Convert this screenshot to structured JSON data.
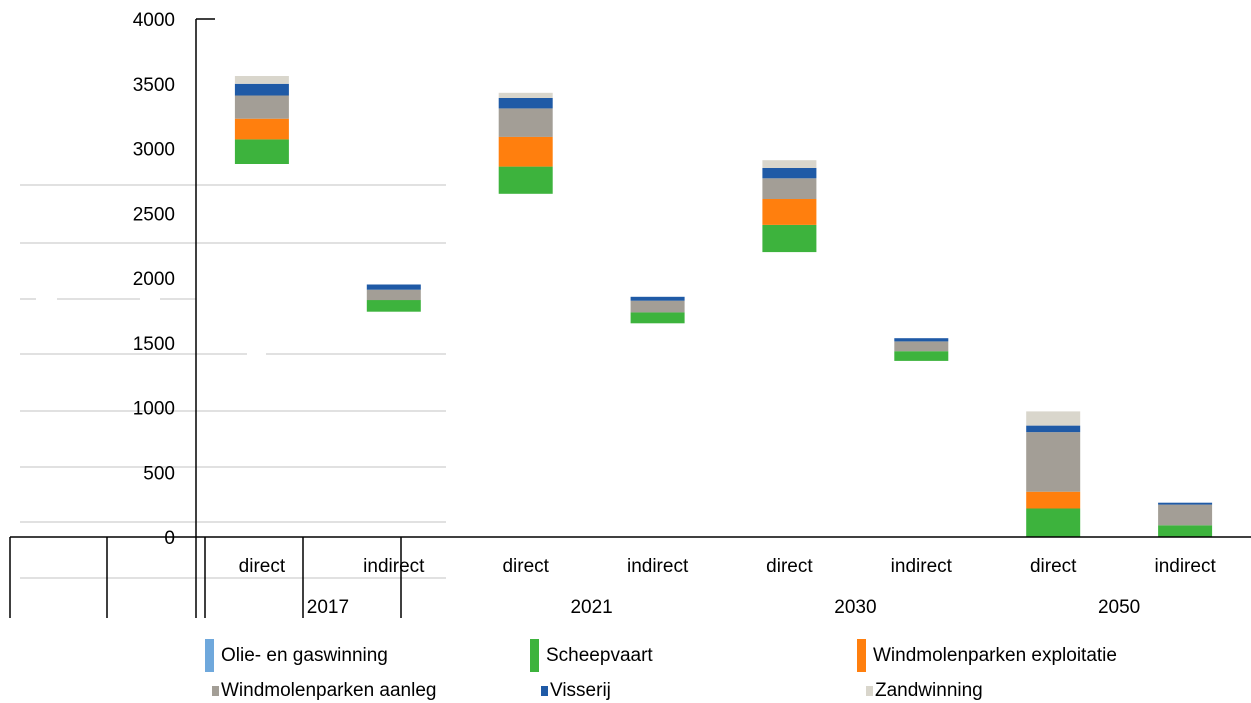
{
  "chart_data": {
    "type": "bar",
    "stacked": true,
    "title": "",
    "xlabel": "",
    "ylabel": "",
    "ylim": [
      0,
      4000
    ],
    "y_ticks": [
      "0",
      "500",
      "1000",
      "1500",
      "2000",
      "2500",
      "3000",
      "3500",
      "4000"
    ],
    "categories": [
      "direct",
      "indirect",
      "direct",
      "indirect",
      "direct",
      "indirect",
      "direct",
      "indirect"
    ],
    "groups": [
      "2017",
      "2021",
      "2030",
      "2050"
    ],
    "bar_base": [
      2880,
      1740,
      2650,
      1650,
      2200,
      1360,
      0,
      0
    ],
    "series": [
      {
        "name": "Olie- en gaswinning",
        "color": "#6FA8DC",
        "values": [
          0,
          0,
          0,
          0,
          0,
          0,
          0,
          0
        ]
      },
      {
        "name": "Scheepvaart",
        "color": "#3DB33D",
        "values": [
          190,
          90,
          210,
          85,
          210,
          75,
          220,
          90
        ]
      },
      {
        "name": "Windmolenparken exploitatie",
        "color": "#FF7F0E",
        "values": [
          160,
          0,
          230,
          0,
          200,
          0,
          130,
          0
        ]
      },
      {
        "name": "Windmolenparken aanleg",
        "color": "#A39E96",
        "values": [
          180,
          80,
          220,
          90,
          160,
          75,
          460,
          160
        ]
      },
      {
        "name": "Visserij",
        "color": "#1F5AA6",
        "values": [
          90,
          40,
          80,
          30,
          80,
          25,
          50,
          15
        ]
      },
      {
        "name": "Zandwinning",
        "color": "#D9D6CC",
        "values": [
          60,
          0,
          40,
          0,
          60,
          0,
          110,
          0
        ]
      }
    ],
    "grid": true,
    "legend_position": "bottom"
  }
}
